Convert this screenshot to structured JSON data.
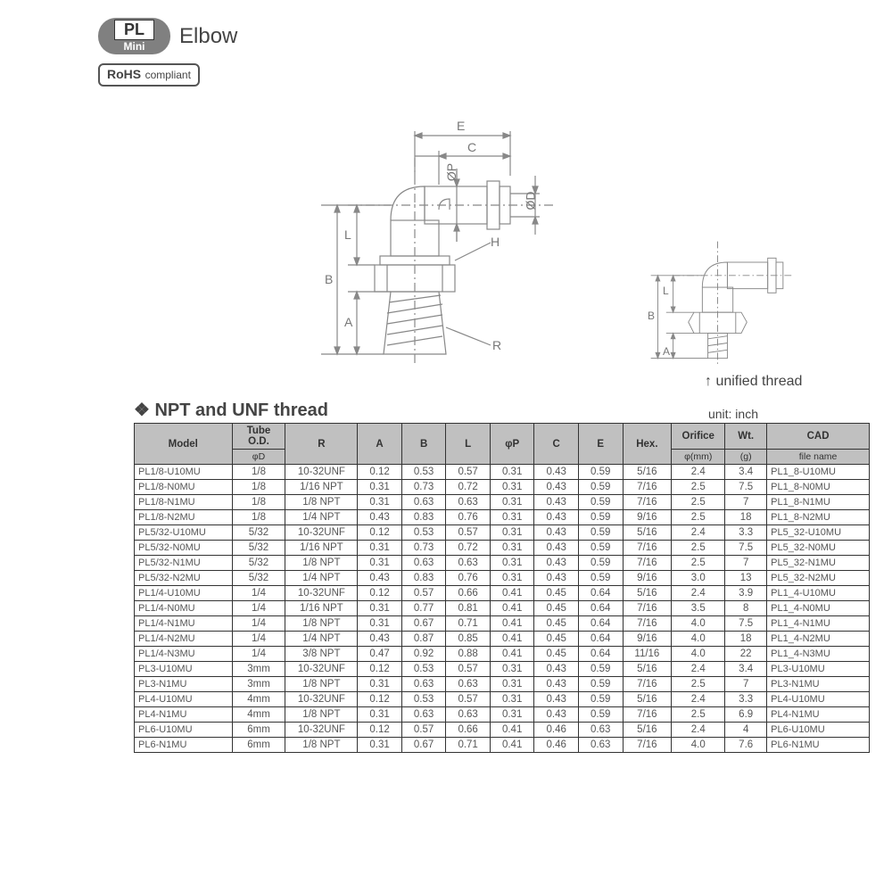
{
  "badge": {
    "top": "PL",
    "bottom": "Mini"
  },
  "title": "Elbow",
  "rohs": {
    "mark": "RoHS",
    "text": "compliant"
  },
  "section_title": "❖  NPT and UNF thread",
  "unit_label": "unit: inch",
  "unified_label": "↑ unified thread",
  "diagram": {
    "labels": [
      "E",
      "C",
      "ØP",
      "ØD",
      "H",
      "R",
      "A",
      "L",
      "B",
      "A",
      "L",
      "B"
    ],
    "stroke_color": "#888888",
    "fill_color": "#bcbcbc"
  },
  "table": {
    "header_bg": "#c0c0c0",
    "border_color": "#333333",
    "columns": [
      {
        "label": "Model",
        "sub": ""
      },
      {
        "label": "Tube O.D.",
        "sub": "φD"
      },
      {
        "label": "R",
        "sub": ""
      },
      {
        "label": "A",
        "sub": ""
      },
      {
        "label": "B",
        "sub": ""
      },
      {
        "label": "L",
        "sub": ""
      },
      {
        "label": "φP",
        "sub": ""
      },
      {
        "label": "C",
        "sub": ""
      },
      {
        "label": "E",
        "sub": ""
      },
      {
        "label": "Hex.",
        "sub": ""
      },
      {
        "label": "Orifice",
        "sub": "φ(mm)"
      },
      {
        "label": "Wt.",
        "sub": "(g)"
      },
      {
        "label": "CAD",
        "sub": "file name"
      }
    ],
    "rows": [
      [
        "PL1/8-U10MU",
        "1/8",
        "10-32UNF",
        "0.12",
        "0.53",
        "0.57",
        "0.31",
        "0.43",
        "0.59",
        "5/16",
        "2.4",
        "3.4",
        "PL1_8-U10MU"
      ],
      [
        "PL1/8-N0MU",
        "1/8",
        "1/16 NPT",
        "0.31",
        "0.73",
        "0.72",
        "0.31",
        "0.43",
        "0.59",
        "7/16",
        "2.5",
        "7.5",
        "PL1_8-N0MU"
      ],
      [
        "PL1/8-N1MU",
        "1/8",
        "1/8 NPT",
        "0.31",
        "0.63",
        "0.63",
        "0.31",
        "0.43",
        "0.59",
        "7/16",
        "2.5",
        "7",
        "PL1_8-N1MU"
      ],
      [
        "PL1/8-N2MU",
        "1/8",
        "1/4 NPT",
        "0.43",
        "0.83",
        "0.76",
        "0.31",
        "0.43",
        "0.59",
        "9/16",
        "2.5",
        "18",
        "PL1_8-N2MU"
      ],
      [
        "PL5/32-U10MU",
        "5/32",
        "10-32UNF",
        "0.12",
        "0.53",
        "0.57",
        "0.31",
        "0.43",
        "0.59",
        "5/16",
        "2.4",
        "3.3",
        "PL5_32-U10MU"
      ],
      [
        "PL5/32-N0MU",
        "5/32",
        "1/16 NPT",
        "0.31",
        "0.73",
        "0.72",
        "0.31",
        "0.43",
        "0.59",
        "7/16",
        "2.5",
        "7.5",
        "PL5_32-N0MU"
      ],
      [
        "PL5/32-N1MU",
        "5/32",
        "1/8 NPT",
        "0.31",
        "0.63",
        "0.63",
        "0.31",
        "0.43",
        "0.59",
        "7/16",
        "2.5",
        "7",
        "PL5_32-N1MU"
      ],
      [
        "PL5/32-N2MU",
        "5/32",
        "1/4 NPT",
        "0.43",
        "0.83",
        "0.76",
        "0.31",
        "0.43",
        "0.59",
        "9/16",
        "3.0",
        "13",
        "PL5_32-N2MU"
      ],
      [
        "PL1/4-U10MU",
        "1/4",
        "10-32UNF",
        "0.12",
        "0.57",
        "0.66",
        "0.41",
        "0.45",
        "0.64",
        "5/16",
        "2.4",
        "3.9",
        "PL1_4-U10MU"
      ],
      [
        "PL1/4-N0MU",
        "1/4",
        "1/16 NPT",
        "0.31",
        "0.77",
        "0.81",
        "0.41",
        "0.45",
        "0.64",
        "7/16",
        "3.5",
        "8",
        "PL1_4-N0MU"
      ],
      [
        "PL1/4-N1MU",
        "1/4",
        "1/8 NPT",
        "0.31",
        "0.67",
        "0.71",
        "0.41",
        "0.45",
        "0.64",
        "7/16",
        "4.0",
        "7.5",
        "PL1_4-N1MU"
      ],
      [
        "PL1/4-N2MU",
        "1/4",
        "1/4 NPT",
        "0.43",
        "0.87",
        "0.85",
        "0.41",
        "0.45",
        "0.64",
        "9/16",
        "4.0",
        "18",
        "PL1_4-N2MU"
      ],
      [
        "PL1/4-N3MU",
        "1/4",
        "3/8 NPT",
        "0.47",
        "0.92",
        "0.88",
        "0.41",
        "0.45",
        "0.64",
        "11/16",
        "4.0",
        "22",
        "PL1_4-N3MU"
      ],
      [
        "PL3-U10MU",
        "3mm",
        "10-32UNF",
        "0.12",
        "0.53",
        "0.57",
        "0.31",
        "0.43",
        "0.59",
        "5/16",
        "2.4",
        "3.4",
        "PL3-U10MU"
      ],
      [
        "PL3-N1MU",
        "3mm",
        "1/8 NPT",
        "0.31",
        "0.63",
        "0.63",
        "0.31",
        "0.43",
        "0.59",
        "7/16",
        "2.5",
        "7",
        "PL3-N1MU"
      ],
      [
        "PL4-U10MU",
        "4mm",
        "10-32UNF",
        "0.12",
        "0.53",
        "0.57",
        "0.31",
        "0.43",
        "0.59",
        "5/16",
        "2.4",
        "3.3",
        "PL4-U10MU"
      ],
      [
        "PL4-N1MU",
        "4mm",
        "1/8 NPT",
        "0.31",
        "0.63",
        "0.63",
        "0.31",
        "0.43",
        "0.59",
        "7/16",
        "2.5",
        "6.9",
        "PL4-N1MU"
      ],
      [
        "PL6-U10MU",
        "6mm",
        "10-32UNF",
        "0.12",
        "0.57",
        "0.66",
        "0.41",
        "0.46",
        "0.63",
        "5/16",
        "2.4",
        "4",
        "PL6-U10MU"
      ],
      [
        "PL6-N1MU",
        "6mm",
        "1/8 NPT",
        "0.31",
        "0.67",
        "0.71",
        "0.41",
        "0.46",
        "0.63",
        "7/16",
        "4.0",
        "7.6",
        "PL6-N1MU"
      ]
    ]
  }
}
